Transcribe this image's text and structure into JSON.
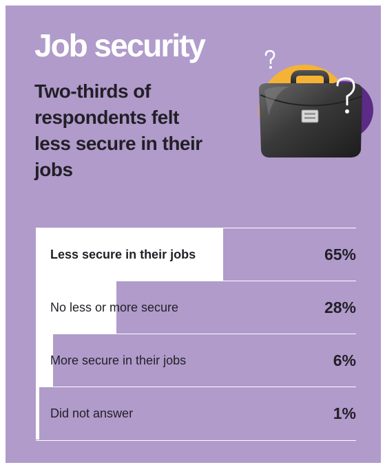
{
  "title": "Job security",
  "subtitle": "Two-thirds of respondents felt less secure in their jobs",
  "colors": {
    "background": "#b09bcb",
    "bar": "#ffffff",
    "text": "#221f26",
    "accent_yellow": "#f5b335",
    "accent_purple": "#5b2b86"
  },
  "illustration": {
    "icon": "briefcase-with-question-marks-icon"
  },
  "chart_data": {
    "type": "bar",
    "orientation": "horizontal",
    "categories": [
      "Less secure in their jobs",
      "No less or more secure",
      "More secure in their jobs",
      "Did not answer"
    ],
    "values": [
      65,
      28,
      6,
      1
    ],
    "value_labels": [
      "65%",
      "28%",
      "6%",
      "1%"
    ],
    "unit": "%",
    "xlim": [
      0,
      100
    ],
    "highlight_index": 0,
    "title": "Job security",
    "subtitle": "Two-thirds of respondents felt less secure in their jobs",
    "xlabel": "",
    "ylabel": "",
    "grid": false,
    "legend": "none"
  }
}
